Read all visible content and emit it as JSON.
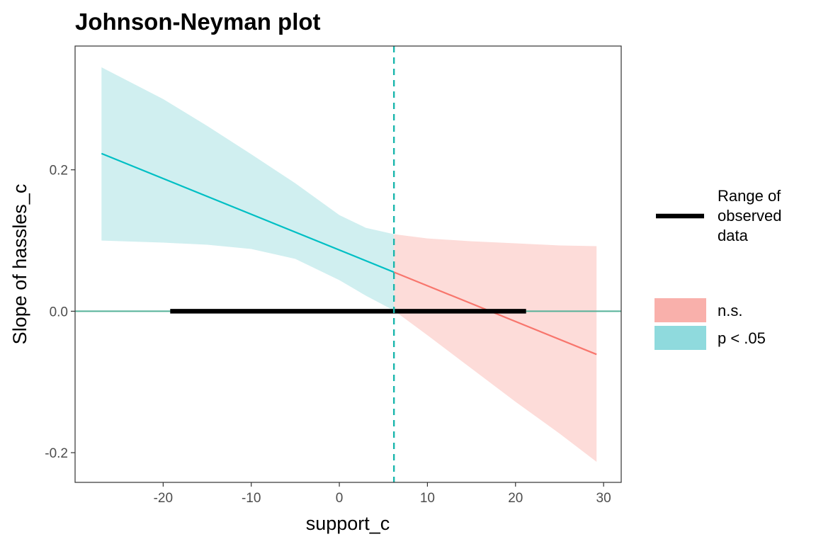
{
  "chart_data": {
    "type": "line",
    "title": "Johnson-Neyman plot",
    "xlabel": "support_c",
    "ylabel": "Slope of hassles_c",
    "xlim": [
      -30,
      32
    ],
    "ylim": [
      -0.242,
      0.375
    ],
    "x_ticks": [
      -20,
      -10,
      0,
      10,
      20,
      30
    ],
    "x_tick_labels": [
      "-20",
      "-10",
      "0",
      "10",
      "20",
      "30"
    ],
    "y_ticks": [
      -0.2,
      0.0,
      0.2
    ],
    "y_tick_labels": [
      "-0.2",
      "0.0",
      "0.2"
    ],
    "grid": false,
    "legend_position": "right",
    "johnson_neyman_point": 6.2,
    "slope_line": {
      "x_start": -27.0,
      "y_start": 0.223,
      "x_end": 29.2,
      "y_end": -0.061
    },
    "confidence_band": {
      "x": [
        -27.0,
        -20.0,
        -15.0,
        -10.0,
        -5.0,
        0.0,
        3.0,
        6.2,
        10.0,
        15.0,
        20.0,
        25.0,
        29.2
      ],
      "lower": [
        0.1,
        0.097,
        0.094,
        0.088,
        0.074,
        0.044,
        0.022,
        0.001,
        -0.034,
        -0.081,
        -0.128,
        -0.173,
        -0.213
      ],
      "upper": [
        0.345,
        0.3,
        0.262,
        0.222,
        0.181,
        0.136,
        0.118,
        0.109,
        0.103,
        0.099,
        0.096,
        0.093,
        0.092
      ]
    },
    "observed_data_range": [
      -19.2,
      21.2
    ],
    "series": [
      {
        "name": "n.s.",
        "color": "#F8766D",
        "fill": "#FDDCD9"
      },
      {
        "name": "p < .05",
        "color": "#00BFC4",
        "fill": "#D0EFF0"
      }
    ],
    "legend": {
      "range_label_lines": [
        "Range of",
        "observed",
        "data"
      ],
      "significance_entries": [
        {
          "label": "n.s.",
          "swatch_color": "#F9B0AB"
        },
        {
          "label": "p < .05",
          "swatch_color": "#8FDADD"
        }
      ]
    },
    "colors": {
      "zero_line": "#55B198",
      "jn_line": "#1AB6AD",
      "observed_range": "#000000",
      "panel_border": "#333333"
    }
  }
}
